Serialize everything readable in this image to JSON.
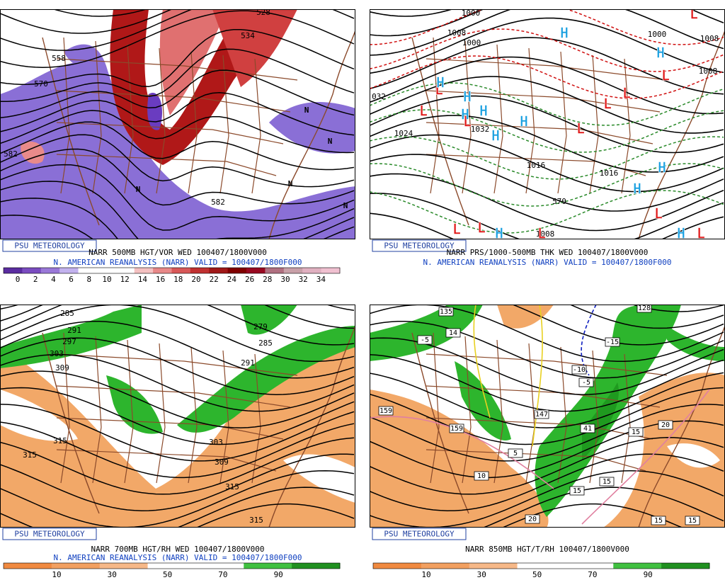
{
  "panels": [
    {
      "badge": "PSU METEOROLOGY",
      "caption": "NARR 500MB HGT/VOR WED 100407/1800V000",
      "subcaption": "N. AMERICAN REANALYSIS (NARR) VALID = 100407/1800F000",
      "colorbar_labels": [
        0,
        2,
        4,
        6,
        8,
        10,
        12,
        14,
        16,
        18,
        20,
        22,
        24,
        26,
        28,
        30,
        32,
        34
      ],
      "contour_labels": [
        "558",
        "570",
        "582",
        "582",
        "534",
        "528"
      ],
      "markers": [
        "N",
        "N",
        "N",
        "N",
        "N"
      ]
    },
    {
      "badge": "PSU METEOROLOGY",
      "caption": "NARR PRS/1000-500MB THK WED 100407/1800V000",
      "subcaption": "N. AMERICAN REANALYSIS (NARR) VALID = 100407/1800F000",
      "contour_labels": [
        "1000",
        "1008",
        "1000",
        "1000",
        "1008",
        "1008",
        "032",
        "1024",
        "1032",
        "1016",
        "1016",
        "1008",
        "570"
      ],
      "markers": [
        "L",
        "L",
        "L",
        "L",
        "L",
        "L",
        "L",
        "L",
        "L",
        "L",
        "L",
        "L",
        "L",
        "H",
        "H",
        "H",
        "H",
        "H",
        "H",
        "H",
        "H",
        "H",
        "H",
        "H",
        "H"
      ]
    },
    {
      "badge": "PSU METEOROLOGY",
      "caption": "NARR 700MB HGT/RH WED 100407/1800V000",
      "subcaption": "N. AMERICAN REANALYSIS (NARR) VALID = 100407/1800F000",
      "colorbar_labels": [
        10,
        30,
        50,
        70,
        90
      ],
      "contour_labels": [
        "285",
        "291",
        "297",
        "303",
        "309",
        "279",
        "285",
        "291",
        "315",
        "315",
        "303",
        "309",
        "315",
        "315"
      ]
    },
    {
      "badge": "PSU METEOROLOGY",
      "caption": "NARR 850MB HGT/T/RH 100407/1800V000",
      "colorbar_labels": [
        10,
        30,
        50,
        70,
        90
      ],
      "contour_labels": [
        "135",
        "14",
        "-5",
        "159",
        "159",
        "147",
        "-10",
        "-15",
        "-5",
        "41",
        "15",
        "15",
        "15",
        "20",
        "10",
        "20",
        "5",
        "15",
        "15",
        "128"
      ]
    }
  ]
}
